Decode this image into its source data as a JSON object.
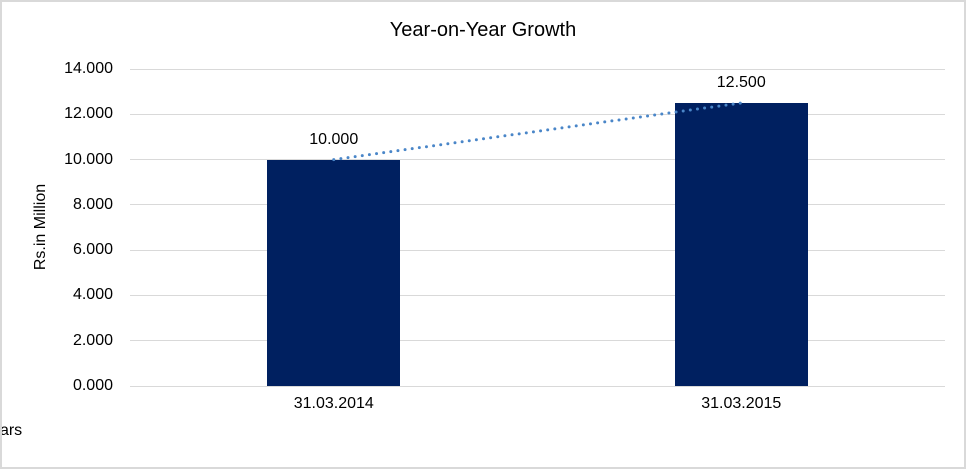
{
  "chart_data": {
    "type": "bar",
    "title": "Year-on-Year Growth",
    "xlabel": "Years",
    "ylabel": "Rs.in Million",
    "categories": [
      "31.03.2014",
      "31.03.2015"
    ],
    "values": [
      10.0,
      12.5
    ],
    "data_labels": [
      "10.000",
      "12.500"
    ],
    "ylim": [
      0,
      14
    ],
    "ytick_step": 2,
    "ytick_labels": [
      "0.000",
      "2.000",
      "4.000",
      "6.000",
      "8.000",
      "10.000",
      "12.000",
      "14.000"
    ],
    "grid": true,
    "legend": "none",
    "trendline": {
      "type": "linear",
      "style": "dotted",
      "start_value": 10.0,
      "end_value": 12.5
    },
    "colors": {
      "bar": "#002060",
      "trendline": "#4a86c8",
      "gridline": "#d9d9d9",
      "text": "#000000",
      "frame_border": "#d9d9d9",
      "background": "#ffffff"
    }
  }
}
